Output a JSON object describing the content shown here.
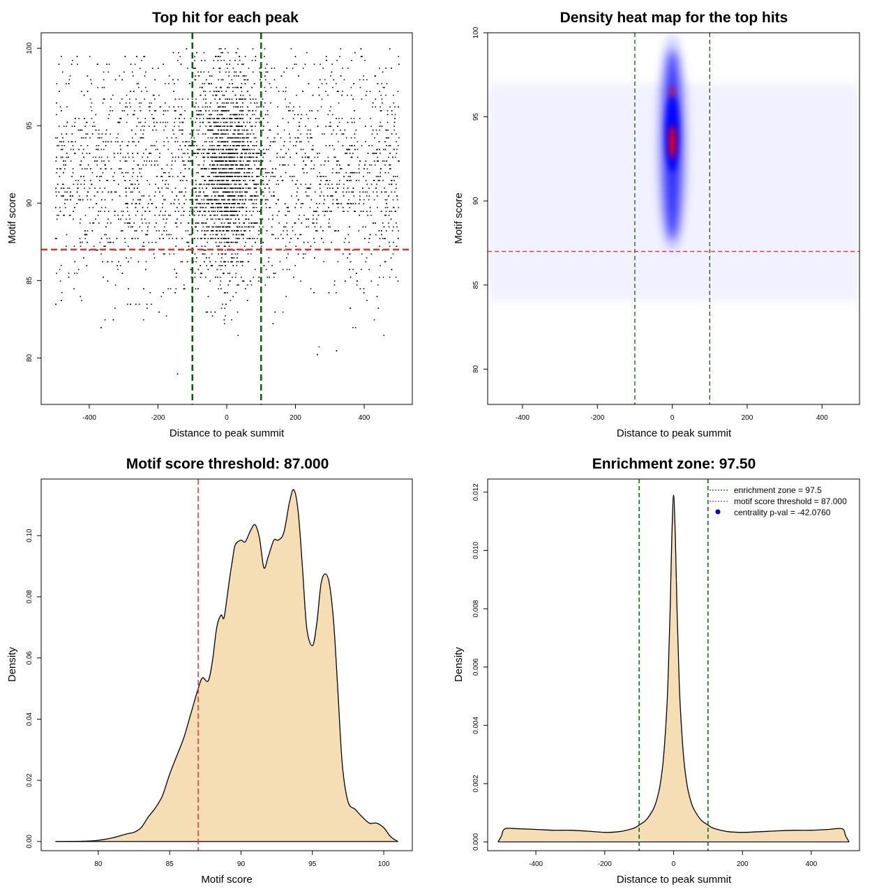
{
  "chart_data": [
    {
      "type": "scatter",
      "title": "Top hit for each peak",
      "xlabel": "Distance to peak summit",
      "ylabel": "Motif score",
      "xlim": [
        -540,
        540
      ],
      "ylim": [
        77.0,
        101.0
      ],
      "xticks": [
        -400,
        -200,
        0,
        200,
        400
      ],
      "xtick_labels": [
        "-400",
        "-200",
        "0",
        "200",
        "400"
      ],
      "yticks": [
        80,
        85,
        90,
        95,
        100
      ],
      "ytick_labels": [
        "80",
        "85",
        "90",
        "95",
        "100"
      ],
      "point_color": "#000000",
      "reference_lines": [
        {
          "orientation": "vertical",
          "value": -100,
          "color": "#006400",
          "style": "dashed"
        },
        {
          "orientation": "vertical",
          "value": 100,
          "color": "#006400",
          "style": "dashed"
        },
        {
          "orientation": "horizontal",
          "value": 87.0,
          "color": "#dd3333",
          "style": "dashed"
        }
      ],
      "distribution": {
        "x_range": [
          -500,
          500
        ],
        "y_range": [
          77.8,
          100.0
        ],
        "background_fraction": 0.6,
        "central_sd": 45,
        "central_score_mean": 92.0,
        "central_score_sd": 3.2
      }
    },
    {
      "type": "heatmap",
      "title": "Density heat map for the top hits",
      "xlabel": "Distance to peak summit",
      "ylabel": "Motif score",
      "xlim": [
        -493,
        500
      ],
      "ylim": [
        77.9,
        100.0
      ],
      "xticks": [
        -400,
        -200,
        0,
        200,
        400
      ],
      "xtick_labels": [
        "-400",
        "-200",
        "0",
        "200",
        "400"
      ],
      "yticks": [
        80,
        85,
        90,
        95,
        100
      ],
      "ytick_labels": [
        "80",
        "85",
        "90",
        "95",
        "100"
      ],
      "colors": {
        "low": "#ffffff",
        "mid": "#0000ff",
        "high": "#ff0000"
      },
      "reference_lines": [
        {
          "orientation": "vertical",
          "value": -100,
          "color": "#006400",
          "style": "dashed"
        },
        {
          "orientation": "vertical",
          "value": 100,
          "color": "#006400",
          "style": "dashed"
        },
        {
          "orientation": "horizontal",
          "value": 87.0,
          "color": "#dd3333",
          "style": "dashed"
        }
      ],
      "hotspot": {
        "x": 0,
        "y_peak": 93.5,
        "y_range": [
          87.5,
          99.5
        ]
      }
    },
    {
      "type": "area",
      "title": "Motif score threshold: 87.000",
      "xlabel": "Motif score",
      "ylabel": "Density",
      "xlim": [
        76.0,
        102.0
      ],
      "ylim": [
        -0.003,
        0.1185
      ],
      "xticks": [
        80,
        85,
        90,
        95,
        100
      ],
      "xtick_labels": [
        "80",
        "85",
        "90",
        "95",
        "100"
      ],
      "yticks": [
        0.0,
        0.02,
        0.04,
        0.06,
        0.08,
        0.1
      ],
      "ytick_labels": [
        "0.00",
        "0.02",
        "0.04",
        "0.06",
        "0.08",
        "0.10"
      ],
      "fill_color": "#f5deb3",
      "line_color": "#000000",
      "x": [
        77.0,
        79.0,
        80.0,
        81.0,
        82.0,
        82.5,
        83.0,
        83.5,
        84.0,
        84.5,
        85.0,
        85.5,
        86.0,
        86.5,
        87.0,
        87.3,
        87.7,
        88.0,
        88.3,
        88.6,
        88.8,
        89.0,
        89.2,
        89.4,
        89.6,
        90.0,
        90.3,
        90.7,
        91.0,
        91.3,
        91.6,
        91.9,
        92.3,
        92.6,
        93.0,
        93.4,
        93.7,
        94.0,
        94.3,
        94.6,
        95.0,
        95.3,
        95.6,
        95.9,
        96.2,
        96.5,
        96.8,
        97.1,
        97.5,
        98.0,
        98.5,
        99.0,
        99.5,
        100.0,
        100.5,
        101.0
      ],
      "values": [
        0.0,
        0.0001,
        0.0004,
        0.0012,
        0.0025,
        0.003,
        0.0045,
        0.008,
        0.011,
        0.015,
        0.022,
        0.028,
        0.034,
        0.042,
        0.05,
        0.0535,
        0.0525,
        0.059,
        0.07,
        0.074,
        0.073,
        0.079,
        0.086,
        0.092,
        0.097,
        0.0985,
        0.098,
        0.102,
        0.1035,
        0.099,
        0.0895,
        0.093,
        0.0985,
        0.0985,
        0.101,
        0.111,
        0.115,
        0.108,
        0.09,
        0.07,
        0.064,
        0.071,
        0.084,
        0.0875,
        0.084,
        0.071,
        0.048,
        0.025,
        0.013,
        0.0105,
        0.008,
        0.006,
        0.006,
        0.0045,
        0.0015,
        0.0
      ]
    },
    {
      "type": "area",
      "title": "Enrichment zone: 97.50",
      "xlabel": "Distance to peak summit",
      "ylabel": "Density",
      "xlim": [
        -540,
        540
      ],
      "ylim": [
        -0.0003,
        0.01245
      ],
      "xticks": [
        -400,
        -200,
        0,
        200,
        400
      ],
      "xtick_labels": [
        "-400",
        "-200",
        "0",
        "200",
        "400"
      ],
      "yticks": [
        0.0,
        0.002,
        0.004,
        0.006,
        0.008,
        0.01,
        0.012
      ],
      "ytick_labels": [
        "0.000",
        "0.002",
        "0.004",
        "0.006",
        "0.008",
        "0.010",
        "0.012"
      ],
      "fill_color": "#f5deb3",
      "line_color": "#000000",
      "x": [
        -510,
        -500,
        -490,
        -450,
        -400,
        -350,
        -300,
        -250,
        -200,
        -160,
        -130,
        -110,
        -100,
        -80,
        -60,
        -50,
        -40,
        -30,
        -20,
        -15,
        -10,
        -5,
        0,
        5,
        10,
        15,
        20,
        30,
        40,
        50,
        60,
        80,
        100,
        110,
        130,
        160,
        200,
        250,
        300,
        350,
        400,
        450,
        490,
        500,
        510
      ],
      "values": [
        0.0,
        0.0002,
        0.00045,
        0.00045,
        0.00043,
        0.0004,
        0.0004,
        0.00037,
        0.00033,
        0.00035,
        0.00042,
        0.0005,
        0.00058,
        0.00075,
        0.0011,
        0.0014,
        0.0019,
        0.0028,
        0.0045,
        0.006,
        0.008,
        0.0105,
        0.0119,
        0.0105,
        0.008,
        0.006,
        0.0045,
        0.0028,
        0.0019,
        0.0014,
        0.0011,
        0.00075,
        0.00058,
        0.0005,
        0.00042,
        0.00035,
        0.00033,
        0.00035,
        0.00038,
        0.0004,
        0.0004,
        0.00043,
        0.00045,
        0.0002,
        0.0
      ],
      "reference_lines": [
        {
          "orientation": "vertical",
          "value": -100,
          "color": "#006400",
          "style": "dashed"
        },
        {
          "orientation": "vertical",
          "value": 100,
          "color": "#006400",
          "style": "dashed"
        }
      ],
      "legend": {
        "placement": "top-right",
        "entries": [
          {
            "label": "enrichment zone = 97.5",
            "color": "#006400",
            "marker": "dotted-line"
          },
          {
            "label": "motif score threshold = 87.000",
            "color": "#dd3333",
            "marker": "dotted-line"
          },
          {
            "label": "centrality p-val = -42.0760",
            "color": "#0000ff",
            "marker": "point"
          }
        ]
      }
    }
  ]
}
